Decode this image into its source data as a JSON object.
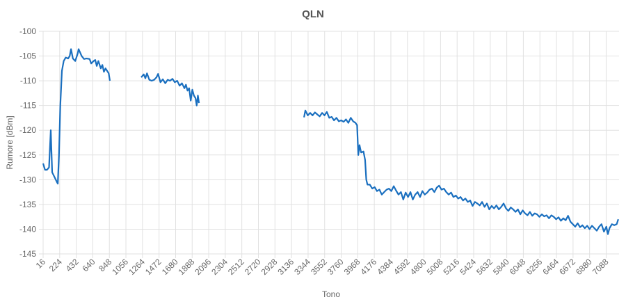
{
  "chart_data": {
    "type": "line",
    "title": "QLN",
    "x_label": "Tono",
    "y_label": "Rumore [dBm]",
    "xlim": [
      16,
      7250
    ],
    "xticks": [
      16,
      224,
      432,
      640,
      848,
      1056,
      1264,
      1472,
      1680,
      1888,
      2096,
      2304,
      2512,
      2720,
      2928,
      3136,
      3344,
      3552,
      3760,
      3968,
      4176,
      4384,
      4592,
      4800,
      5008,
      5216,
      5424,
      5632,
      5840,
      6048,
      6256,
      6464,
      6672,
      6880,
      7088
    ],
    "ylim": [
      -145,
      -100
    ],
    "yticks": [
      -145,
      -140,
      -135,
      -130,
      -125,
      -120,
      -115,
      -110,
      -105,
      -100
    ],
    "grid": true,
    "series": [
      {
        "name": "QLN",
        "color": "#1a6fbf",
        "x": [
          16,
          40,
          64,
          90,
          112,
          130,
          160,
          190,
          200,
          215,
          232,
          252,
          275,
          300,
          330,
          350,
          366,
          390,
          420,
          450,
          462,
          500,
          530,
          560,
          600,
          620,
          650,
          670,
          690,
          710,
          740,
          760,
          780,
          800,
          820,
          840,
          855,
          1000,
          1248,
          1280,
          1300,
          1320,
          1350,
          1380,
          1410,
          1440,
          1460,
          1490,
          1520,
          1550,
          1580,
          1610,
          1640,
          1670,
          1700,
          1730,
          1760,
          1790,
          1810,
          1830,
          1850,
          1870,
          1890,
          1910,
          1930,
          1945,
          1960,
          1974,
          2600,
          3293,
          3310,
          3340,
          3370,
          3400,
          3430,
          3460,
          3490,
          3520,
          3550,
          3580,
          3610,
          3640,
          3670,
          3700,
          3730,
          3760,
          3790,
          3820,
          3850,
          3880,
          3910,
          3940,
          3960,
          3975,
          3990,
          4010,
          4040,
          4060,
          4075,
          4090,
          4120,
          4150,
          4180,
          4210,
          4240,
          4270,
          4300,
          4330,
          4360,
          4390,
          4420,
          4450,
          4480,
          4510,
          4540,
          4570,
          4600,
          4630,
          4660,
          4690,
          4720,
          4750,
          4780,
          4810,
          4840,
          4870,
          4900,
          4930,
          4960,
          4990,
          5020,
          5050,
          5080,
          5110,
          5140,
          5170,
          5200,
          5230,
          5260,
          5290,
          5320,
          5350,
          5380,
          5410,
          5440,
          5470,
          5500,
          5530,
          5560,
          5590,
          5620,
          5650,
          5680,
          5710,
          5740,
          5770,
          5800,
          5830,
          5860,
          5890,
          5920,
          5950,
          5980,
          6010,
          6040,
          6070,
          6100,
          6130,
          6160,
          6190,
          6220,
          6250,
          6280,
          6310,
          6340,
          6370,
          6400,
          6430,
          6460,
          6490,
          6520,
          6550,
          6580,
          6610,
          6640,
          6670,
          6700,
          6730,
          6760,
          6790,
          6820,
          6850,
          6880,
          6910,
          6940,
          6970,
          7000,
          7030,
          7060,
          7090,
          7110,
          7130,
          7160,
          7190,
          7220,
          7240
        ],
        "values": [
          -126.7,
          -128,
          -128,
          -127.5,
          -120,
          -128.5,
          -129.5,
          -130.5,
          -130.8,
          -125,
          -115,
          -108,
          -106,
          -105.3,
          -105.5,
          -105,
          -103.6,
          -105.5,
          -106,
          -104.5,
          -103.6,
          -105,
          -105.6,
          -105.5,
          -105.6,
          -106.5,
          -106,
          -105.8,
          -107,
          -106,
          -107.5,
          -106.8,
          -108.2,
          -107.5,
          -108,
          -108.5,
          -110,
          null,
          -109.3,
          -108.7,
          -109.5,
          -108.5,
          -109.8,
          -110,
          -109.8,
          -109.3,
          -108.6,
          -110.3,
          -109.7,
          -110.5,
          -109.8,
          -110,
          -109.6,
          -110.3,
          -110,
          -111,
          -110.5,
          -111.5,
          -110.8,
          -112,
          -111.5,
          -114,
          -111.8,
          -113,
          -113.5,
          -115,
          -113,
          -114.5,
          null,
          -117.4,
          -116,
          -117,
          -116.5,
          -117,
          -116.4,
          -116.8,
          -117.2,
          -116.5,
          -117,
          -116.3,
          -117.5,
          -117.3,
          -118,
          -117.5,
          -118.2,
          -118,
          -118.3,
          -117.8,
          -118.5,
          -117.5,
          -118.2,
          -118.5,
          -119,
          -125,
          -123,
          -124.5,
          -124.3,
          -126,
          -130,
          -131,
          -131,
          -131.8,
          -131.5,
          -132.3,
          -132,
          -133,
          -132.5,
          -132,
          -131.8,
          -132.3,
          -131.3,
          -132.2,
          -133,
          -132.5,
          -134,
          -132.6,
          -133.5,
          -132.5,
          -134,
          -133,
          -132.5,
          -133.5,
          -132.3,
          -133,
          -132.6,
          -132,
          -131.8,
          -132.5,
          -131.6,
          -131.2,
          -132,
          -131.8,
          -132.5,
          -133,
          -132.6,
          -133.5,
          -133.2,
          -133.8,
          -133.5,
          -134.2,
          -133.8,
          -134.5,
          -134.2,
          -135.3,
          -134.5,
          -134.8,
          -135.2,
          -134.5,
          -135.5,
          -134.8,
          -136,
          -135.3,
          -135.8,
          -135.2,
          -136,
          -135.5,
          -134.8,
          -135.8,
          -136.3,
          -135.6,
          -136,
          -136.5,
          -136,
          -137,
          -136.2,
          -136.8,
          -137.2,
          -136.5,
          -137.3,
          -136.8,
          -137,
          -137.5,
          -137,
          -137.4,
          -137.2,
          -137.8,
          -137.2,
          -137.5,
          -138,
          -137.6,
          -138.3,
          -137.8,
          -138.2,
          -137.3,
          -138.5,
          -139,
          -139.5,
          -138.8,
          -139.6,
          -139.2,
          -139.8,
          -139.3,
          -140,
          -139.3,
          -139.8,
          -140.3,
          -139.5,
          -139,
          -140.5,
          -139.5,
          -141,
          -139.8,
          -139,
          -139.2,
          -139,
          -138
        ]
      }
    ]
  }
}
